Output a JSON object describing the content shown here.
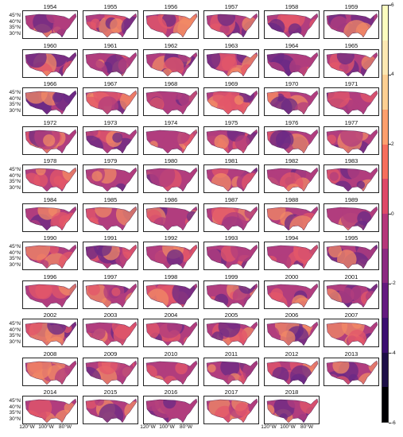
{
  "years": [
    "1954",
    "1955",
    "1956",
    "1957",
    "1958",
    "1959",
    "1960",
    "1961",
    "1962",
    "1963",
    "1964",
    "1965",
    "1966",
    "1967",
    "1968",
    "1969",
    "1970",
    "1971",
    "1972",
    "1973",
    "1974",
    "1975",
    "1976",
    "1977",
    "1978",
    "1979",
    "1980",
    "1981",
    "1982",
    "1983",
    "1984",
    "1985",
    "1986",
    "1987",
    "1988",
    "1989",
    "1990",
    "1991",
    "1992",
    "1993",
    "1994",
    "1995",
    "1996",
    "1997",
    "1998",
    "1999",
    "2000",
    "2001",
    "2002",
    "2003",
    "2004",
    "2005",
    "2006",
    "2007",
    "2008",
    "2009",
    "2010",
    "2011",
    "2012",
    "2013",
    "2014",
    "2015",
    "2016",
    "2017",
    "2018"
  ],
  "latitude_labels": [
    "45°N",
    "40°N",
    "35°N",
    "30°N"
  ],
  "longitude_labels": [
    "120°W",
    "100°W",
    "80°W"
  ],
  "colorbar": {
    "ticks": [
      "6",
      "4",
      "2",
      "0",
      "-2",
      "-4",
      "-6"
    ],
    "min": -6,
    "max": 6,
    "colors": [
      "#000004",
      "#1d0f47",
      "#3b0f70",
      "#641a80",
      "#8c2981",
      "#b5367a",
      "#de4968",
      "#f66e5c",
      "#fe9f6d",
      "#fecf92",
      "#fde8b2",
      "#fcfdbf"
    ]
  },
  "map_colors": {
    "cool": "#6a2a86",
    "mid": "#b13d7e",
    "warm": "#e3576a",
    "hot": "#f28a66"
  }
}
